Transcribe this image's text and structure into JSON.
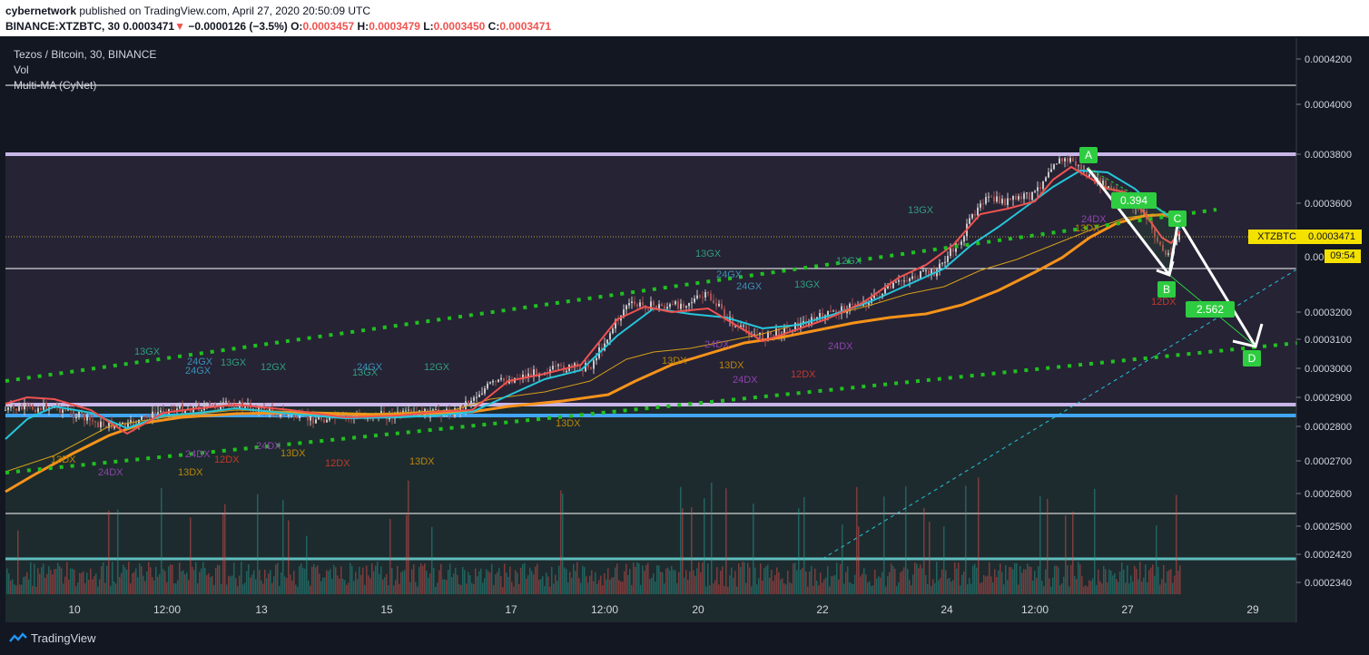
{
  "header": {
    "author": "cybernetwork",
    "published_text": "published on TradingView.com, April 27, 2020 20:50:09 UTC",
    "symbol_line": "BINANCE:XTZBTC, 30",
    "last": "0.0003471",
    "change": "−0.0000126 (−3.5%)",
    "open_label": "O:",
    "open": "0.0003457",
    "high_label": "H:",
    "high": "0.0003479",
    "low_label": "L:",
    "low": "0.0003450",
    "close_label": "C:",
    "close": "0.0003471"
  },
  "legend": {
    "title": "Tezos / Bitcoin, 30, BINANCE",
    "vol": "Vol",
    "ma": "Multi-MA (CyNet)"
  },
  "price_axis": {
    "ticks": [
      "0.0004200",
      "0.0004000",
      "0.0003800",
      "0.0003600",
      "0.0003200",
      "0.0003100",
      "0.0003000",
      "0.0002900",
      "0.0002800",
      "0.0002700",
      "0.0002600",
      "0.0002500",
      "0.0002420",
      "0.0002340"
    ],
    "partial_tick": "0.00",
    "last_symbol": "XTZBTC",
    "last_price": "0.0003471",
    "countdown": "09:54"
  },
  "time_axis": [
    "10",
    "12:00",
    "13",
    "15",
    "17",
    "12:00",
    "20",
    "22",
    "24",
    "12:00",
    "27",
    "29"
  ],
  "colors": {
    "background": "#131722",
    "upper_zone": "#262335",
    "lower_zone": "#1e2b2e",
    "ma_red": "#ef5350",
    "ma_cyan": "#26c6da",
    "ma_orange": "#f7931a",
    "channel_green": "#20c020",
    "label_green": "#2ecc40",
    "band_lavender": "#c8b6e8",
    "band_blue": "#42a5f5",
    "volume_up": "#26a69a",
    "volume_down": "#ef5350"
  },
  "pattern": {
    "points": [
      "A",
      "B",
      "C",
      "D"
    ],
    "ratio_ab_c": "0.394",
    "ratio_bc_d": "2.562"
  },
  "ma_labels": [
    {
      "text": "13GX",
      "c": "#2e9e7c"
    },
    {
      "text": "24GX",
      "c": "#3a8fb5"
    },
    {
      "text": "13GX",
      "c": "#2e9e7c"
    },
    {
      "text": "12GX",
      "c": "#2e9e7c"
    },
    {
      "text": "24GX",
      "c": "#3a8fb5"
    },
    {
      "text": "13GX",
      "c": "#2e9e7c"
    },
    {
      "text": "12GX",
      "c": "#2e9e7c"
    },
    {
      "text": "13GX",
      "c": "#2e9e7c"
    },
    {
      "text": "24GX",
      "c": "#3a8fb5"
    },
    {
      "text": "24GX",
      "c": "#3a8fb5"
    },
    {
      "text": "13GX",
      "c": "#2e9e7c"
    },
    {
      "text": "12GX",
      "c": "#2e9e7c"
    },
    {
      "text": "13GX",
      "c": "#2e9e7c"
    },
    {
      "text": "24GX",
      "c": "#3a8fb5"
    },
    {
      "text": "13DX",
      "c": "#b8860b"
    },
    {
      "text": "24DX",
      "c": "#8e44ad"
    },
    {
      "text": "24DX",
      "c": "#8e44ad"
    },
    {
      "text": "12DX",
      "c": "#c0392b"
    },
    {
      "text": "13DX",
      "c": "#b8860b"
    },
    {
      "text": "24DX",
      "c": "#8e44ad"
    },
    {
      "text": "13DX",
      "c": "#b8860b"
    },
    {
      "text": "12DX",
      "c": "#c0392b"
    },
    {
      "text": "13DX",
      "c": "#b8860b"
    },
    {
      "text": "13DX",
      "c": "#b8860b"
    },
    {
      "text": "13DX",
      "c": "#b8860b"
    },
    {
      "text": "24DX",
      "c": "#8e44ad"
    },
    {
      "text": "13DX",
      "c": "#b8860b"
    },
    {
      "text": "24DX",
      "c": "#8e44ad"
    },
    {
      "text": "24DX",
      "c": "#8e44ad"
    },
    {
      "text": "12DX",
      "c": "#c0392b"
    },
    {
      "text": "24DX",
      "c": "#8e44ad"
    },
    {
      "text": "13DX",
      "c": "#b8860b"
    },
    {
      "text": "12DX",
      "c": "#c0392b"
    }
  ],
  "footer": {
    "brand": "TradingView"
  }
}
